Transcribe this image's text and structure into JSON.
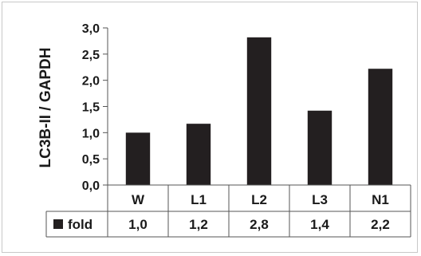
{
  "chart_data": {
    "type": "bar",
    "ylabel": "LC3B-II / GAPDH",
    "categories": [
      "W",
      "L1",
      "L2",
      "L3",
      "N1"
    ],
    "series": [
      {
        "name": "fold",
        "values": [
          1.0,
          1.17,
          2.82,
          1.42,
          2.22
        ]
      }
    ],
    "data_table_values": [
      "1,0",
      "1,2",
      "2,8",
      "1,4",
      "2,2"
    ],
    "yticks": [
      "0,0",
      "0,5",
      "1,0",
      "1,5",
      "2,0",
      "2,5",
      "3,0"
    ],
    "ylim": [
      0,
      3.0
    ],
    "grid": false,
    "legend": "data-table",
    "colors": {
      "bar": "#231f20",
      "axis": "#555555",
      "text": "#1a1a1a"
    }
  }
}
